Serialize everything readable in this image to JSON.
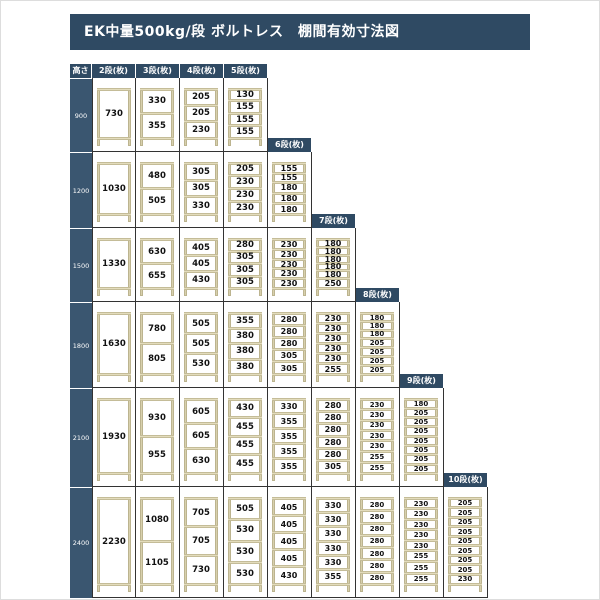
{
  "title": "EK中量500kg/段 ボルトレス　棚間有効寸法図",
  "height_header": "高さ",
  "columns": [
    "2段(枚)",
    "3段(枚)",
    "4段(枚)",
    "5段(枚)",
    "6段(枚)",
    "7段(枚)",
    "8段(枚)",
    "9段(枚)",
    "10段(枚)"
  ],
  "rows": [
    {
      "height": "900",
      "units": [
        [
          730
        ],
        [
          330,
          355
        ],
        [
          205,
          205,
          230
        ],
        [
          130,
          155,
          155,
          155
        ]
      ]
    },
    {
      "height": "1200",
      "units": [
        [
          1030
        ],
        [
          480,
          505
        ],
        [
          305,
          305,
          330
        ],
        [
          205,
          230,
          230,
          230
        ],
        [
          155,
          155,
          180,
          180,
          180
        ]
      ]
    },
    {
      "height": "1500",
      "units": [
        [
          1330
        ],
        [
          630,
          655
        ],
        [
          405,
          405,
          430
        ],
        [
          280,
          305,
          305,
          305
        ],
        [
          230,
          230,
          230,
          230,
          230
        ],
        [
          180,
          180,
          180,
          180,
          180,
          250
        ]
      ]
    },
    {
      "height": "1800",
      "units": [
        [
          1630
        ],
        [
          780,
          805
        ],
        [
          505,
          505,
          530
        ],
        [
          355,
          380,
          380,
          380
        ],
        [
          280,
          280,
          280,
          305,
          305
        ],
        [
          230,
          230,
          230,
          230,
          230,
          255
        ],
        [
          180,
          180,
          180,
          205,
          205,
          205,
          205
        ]
      ]
    },
    {
      "height": "2100",
      "units": [
        [
          1930
        ],
        [
          930,
          955
        ],
        [
          605,
          605,
          630
        ],
        [
          430,
          455,
          455,
          455
        ],
        [
          330,
          355,
          355,
          355,
          355
        ],
        [
          280,
          280,
          280,
          280,
          280,
          305
        ],
        [
          230,
          230,
          230,
          230,
          230,
          255,
          255
        ],
        [
          180,
          205,
          205,
          205,
          205,
          205,
          205,
          205
        ]
      ]
    },
    {
      "height": "2400",
      "units": [
        [
          2230
        ],
        [
          1080,
          1105
        ],
        [
          705,
          705,
          730
        ],
        [
          505,
          530,
          530,
          530
        ],
        [
          405,
          405,
          405,
          405,
          430
        ],
        [
          330,
          330,
          330,
          330,
          330,
          355
        ],
        [
          280,
          280,
          280,
          280,
          280,
          280,
          280
        ],
        [
          230,
          230,
          230,
          230,
          230,
          255,
          255,
          255
        ],
        [
          205,
          205,
          205,
          205,
          205,
          205,
          205,
          205,
          230
        ]
      ]
    }
  ],
  "colors": {
    "header": "#2f4a63",
    "frame": "#d8d0ad"
  }
}
